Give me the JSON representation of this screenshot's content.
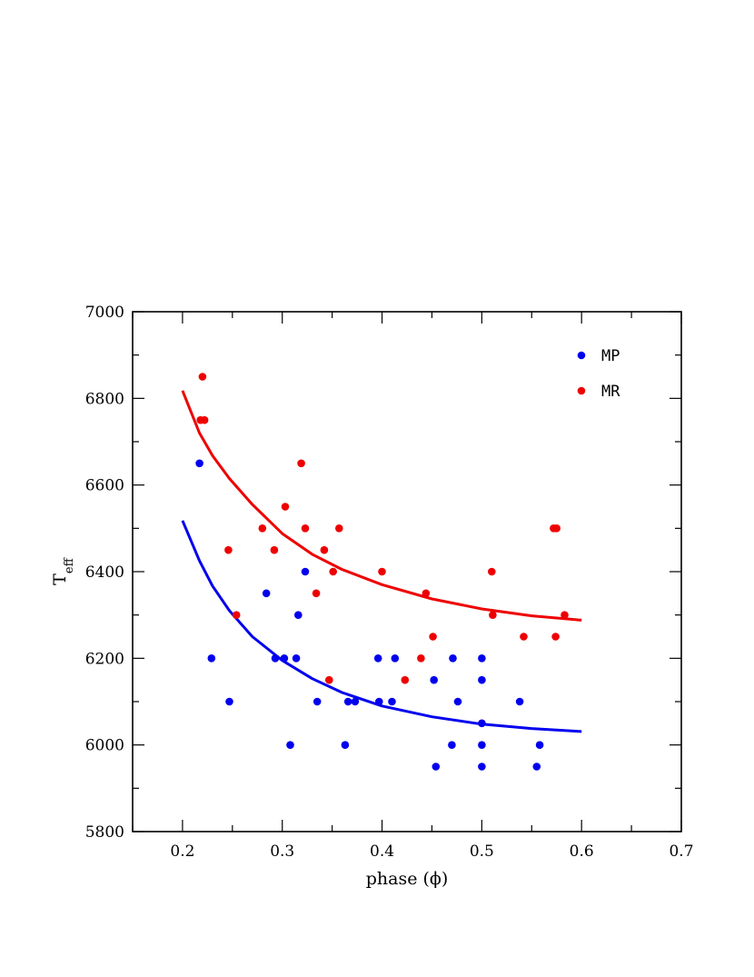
{
  "chart_data": {
    "type": "scatter",
    "xlabel": "phase (ϕ)",
    "ylabel_main": "T",
    "ylabel_sub": "eff",
    "xlim": [
      0.15,
      0.7
    ],
    "ylim": [
      5800,
      7000
    ],
    "xticks": [
      0.2,
      0.3,
      0.4,
      0.5,
      0.6,
      0.7
    ],
    "xtick_labels": [
      "0.2",
      "0.3",
      "0.4",
      "0.5",
      "0.6",
      "0.7"
    ],
    "yticks": [
      5800,
      6000,
      6200,
      6400,
      6600,
      6800,
      7000
    ],
    "ytick_labels": [
      "5800",
      "6000",
      "6200",
      "6400",
      "6600",
      "6800",
      "7000"
    ],
    "legend_position": "top-right",
    "series": [
      {
        "name": "MP",
        "color": "#0000ee",
        "points": [
          [
            0.217,
            6650
          ],
          [
            0.229,
            6200
          ],
          [
            0.247,
            6100
          ],
          [
            0.284,
            6350
          ],
          [
            0.293,
            6200
          ],
          [
            0.302,
            6200
          ],
          [
            0.308,
            6000
          ],
          [
            0.314,
            6200
          ],
          [
            0.316,
            6300
          ],
          [
            0.323,
            6400
          ],
          [
            0.335,
            6100
          ],
          [
            0.363,
            6000
          ],
          [
            0.366,
            6100
          ],
          [
            0.373,
            6100
          ],
          [
            0.396,
            6200
          ],
          [
            0.397,
            6100
          ],
          [
            0.41,
            6100
          ],
          [
            0.413,
            6200
          ],
          [
            0.452,
            6150
          ],
          [
            0.454,
            5950
          ],
          [
            0.47,
            6000
          ],
          [
            0.471,
            6200
          ],
          [
            0.476,
            6100
          ],
          [
            0.5,
            6200
          ],
          [
            0.5,
            6150
          ],
          [
            0.5,
            6050
          ],
          [
            0.5,
            6000
          ],
          [
            0.5,
            5950
          ],
          [
            0.538,
            6100
          ],
          [
            0.555,
            5950
          ],
          [
            0.558,
            6000
          ]
        ]
      },
      {
        "name": "MR",
        "color": "#ee0000",
        "points": [
          [
            0.22,
            6850
          ],
          [
            0.218,
            6750
          ],
          [
            0.222,
            6750
          ],
          [
            0.246,
            6450
          ],
          [
            0.254,
            6300
          ],
          [
            0.28,
            6500
          ],
          [
            0.292,
            6450
          ],
          [
            0.303,
            6550
          ],
          [
            0.319,
            6650
          ],
          [
            0.323,
            6500
          ],
          [
            0.334,
            6350
          ],
          [
            0.342,
            6450
          ],
          [
            0.347,
            6150
          ],
          [
            0.351,
            6400
          ],
          [
            0.357,
            6500
          ],
          [
            0.4,
            6400
          ],
          [
            0.423,
            6150
          ],
          [
            0.439,
            6200
          ],
          [
            0.444,
            6350
          ],
          [
            0.451,
            6250
          ],
          [
            0.51,
            6400
          ],
          [
            0.511,
            6300
          ],
          [
            0.542,
            6250
          ],
          [
            0.572,
            6500
          ],
          [
            0.575,
            6500
          ],
          [
            0.574,
            6250
          ],
          [
            0.583,
            6300
          ]
        ]
      }
    ],
    "fit_curves": [
      {
        "series": "MP",
        "color": "#0000ee",
        "x": [
          0.2,
          0.217,
          0.23,
          0.247,
          0.27,
          0.3,
          0.33,
          0.36,
          0.4,
          0.45,
          0.5,
          0.55,
          0.6
        ],
        "y": [
          6518,
          6425,
          6367,
          6310,
          6250,
          6195,
          6153,
          6121,
          6090,
          6065,
          6048,
          6038,
          6031
        ]
      },
      {
        "series": "MR",
        "color": "#ee0000",
        "x": [
          0.2,
          0.217,
          0.23,
          0.247,
          0.27,
          0.3,
          0.33,
          0.36,
          0.4,
          0.45,
          0.5,
          0.55,
          0.6
        ],
        "y": [
          6818,
          6720,
          6668,
          6615,
          6555,
          6488,
          6440,
          6405,
          6370,
          6337,
          6314,
          6298,
          6288
        ]
      }
    ]
  }
}
